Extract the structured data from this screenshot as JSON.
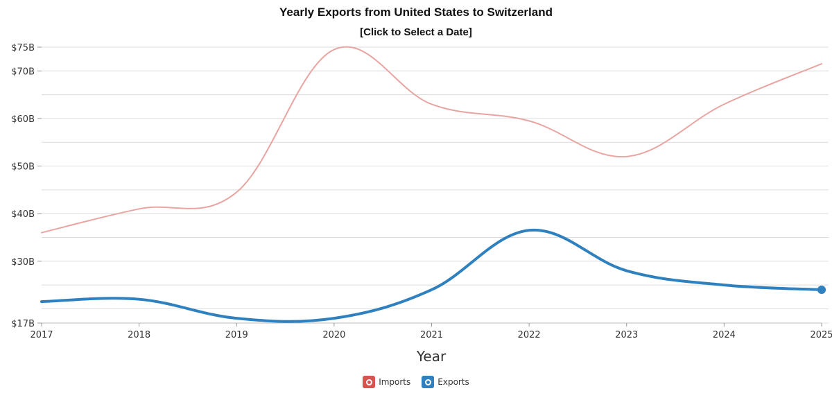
{
  "chart_data": {
    "type": "line",
    "title": "Yearly Exports from United States to Switzerland",
    "subtitle": "[Click to Select a Date]",
    "xlabel": "Year",
    "ylabel": "",
    "categories": [
      "2017",
      "2018",
      "2019",
      "2020",
      "2021",
      "2022",
      "2023",
      "2024",
      "2025"
    ],
    "x": [
      2017,
      2018,
      2019,
      2020,
      2021,
      2022,
      2023,
      2024,
      2025
    ],
    "ylim": [
      17,
      75
    ],
    "y_ticks": [
      {
        "value": 75,
        "label": "$75B"
      },
      {
        "value": 70,
        "label": "$70B"
      },
      {
        "value": 60,
        "label": "$60B"
      },
      {
        "value": 50,
        "label": "$50B"
      },
      {
        "value": 40,
        "label": "$40B"
      },
      {
        "value": 30,
        "label": "$30B"
      },
      {
        "value": 17,
        "label": "$17B"
      }
    ],
    "grid_values": [
      70,
      65,
      60,
      55,
      50,
      45,
      40,
      35,
      30,
      25,
      20
    ],
    "series": [
      {
        "name": "Imports",
        "color": "#e8a5a1",
        "values": [
          36,
          41,
          44.5,
          74.5,
          63,
          59.5,
          52,
          63,
          71.5
        ]
      },
      {
        "name": "Exports",
        "color": "#2f80be",
        "values": [
          21.5,
          22,
          18,
          18,
          24,
          36.5,
          28,
          25,
          24
        ]
      }
    ],
    "legend": [
      {
        "label": "Imports",
        "color": "#d9534f",
        "icon": "imports-icon"
      },
      {
        "label": "Exports",
        "color": "#2f80be",
        "icon": "exports-icon"
      }
    ]
  }
}
